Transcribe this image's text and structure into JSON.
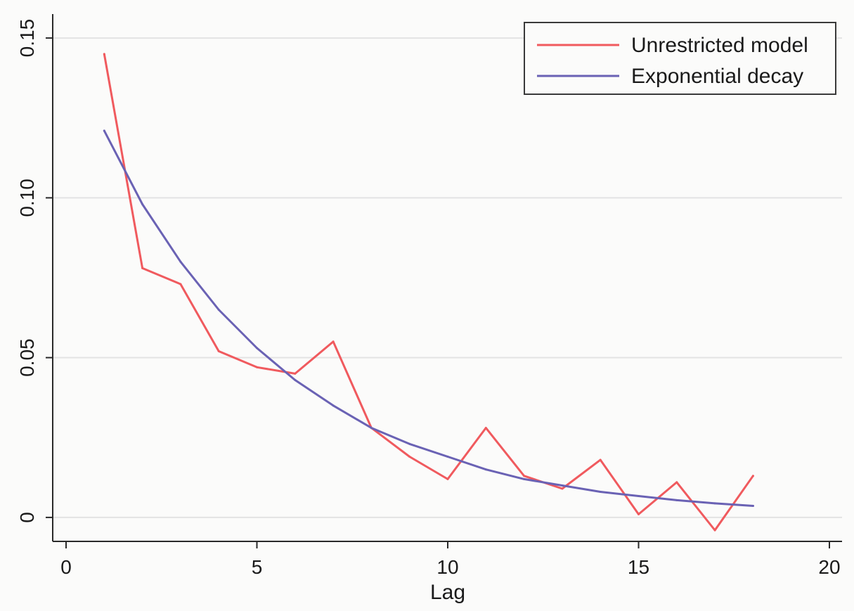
{
  "chart_data": {
    "type": "line",
    "title": "",
    "xlabel": "Lag",
    "ylabel": "",
    "xlim": [
      0,
      20
    ],
    "ylim": [
      -0.0075,
      0.1575
    ],
    "x_ticks": [
      0,
      5,
      10,
      15,
      20
    ],
    "x_tick_labels": [
      "0",
      "5",
      "10",
      "15",
      "20"
    ],
    "y_ticks": [
      0,
      0.05,
      0.1,
      0.15
    ],
    "y_tick_labels": [
      "0",
      "0.05",
      "0.10",
      "0.15"
    ],
    "grid": true,
    "legend_position": "top-right",
    "series": [
      {
        "name": "Unrestricted model",
        "color": "#f05a5e",
        "x": [
          1,
          2,
          3,
          4,
          5,
          6,
          7,
          8,
          9,
          10,
          11,
          12,
          13,
          14,
          15,
          16,
          17,
          18
        ],
        "y": [
          0.145,
          0.078,
          0.073,
          0.052,
          0.047,
          0.045,
          0.055,
          0.028,
          0.019,
          0.012,
          0.028,
          0.013,
          0.009,
          0.018,
          0.001,
          0.011,
          -0.004,
          0.013
        ]
      },
      {
        "name": "Exponential decay",
        "color": "#6a62b4",
        "x": [
          1,
          2,
          3,
          4,
          5,
          6,
          7,
          8,
          9,
          10,
          11,
          12,
          13,
          14,
          15,
          16,
          17,
          18
        ],
        "y": [
          0.121,
          0.098,
          0.08,
          0.065,
          0.053,
          0.043,
          0.035,
          0.028,
          0.023,
          0.019,
          0.015,
          0.012,
          0.01,
          0.008,
          0.0067,
          0.0054,
          0.0044,
          0.0036
        ]
      }
    ]
  }
}
